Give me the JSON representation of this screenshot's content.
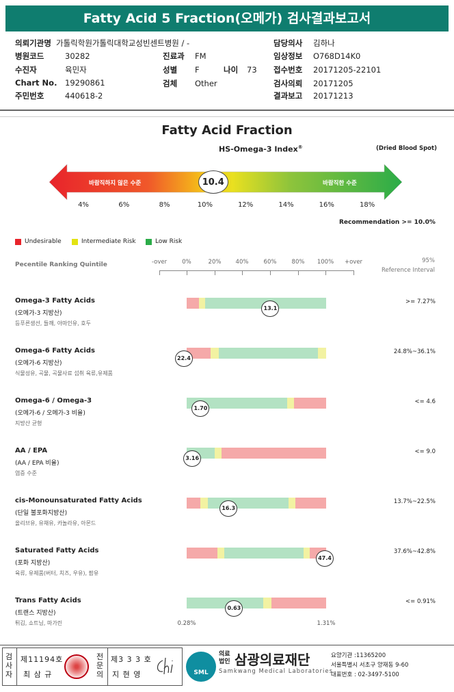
{
  "header": {
    "title": "Fatty Acid 5 Fraction(오메가) 검사결과보고서"
  },
  "info": {
    "institution_label": "의뢰기관명",
    "institution": "가톨릭학원가톨릭대학교성빈센트병원 / -",
    "hospital_code_label": "병원코드",
    "hospital_code": "30282",
    "department_label": "진료과",
    "department": "FM",
    "patient_label": "수진자",
    "patient": "육민자",
    "sex_label": "성별",
    "sex": "F",
    "age_label": "나이",
    "age": "73",
    "chart_label": "Chart No.",
    "chart": "19290861",
    "specimen_label": "검체",
    "specimen": "Other",
    "rrn_label": "주민번호",
    "rrn": "440618-2",
    "doctor_label": "담당의사",
    "doctor": "김하나",
    "clinical_label": "임상정보",
    "clinical": "O768D14K0",
    "receipt_label": "접수번호",
    "receipt": "20171205-22101",
    "request_label": "검사의뢰",
    "request": "20171205",
    "report_label": "결과보고",
    "report": "20171213"
  },
  "fraction": {
    "title": "Fatty Acid Fraction",
    "index_label": "HS-Omega-3 Index",
    "index_sup": "®",
    "specimen_note": "(Dried Blood Spot)",
    "left_text": "바람직하지 않은 수준",
    "right_text": "바람직한 수준",
    "value": "10.4",
    "value_num": 10.4,
    "scale": [
      "4%",
      "6%",
      "8%",
      "10%",
      "12%",
      "14%",
      "16%",
      "18%"
    ],
    "recommendation": "Recommendation  >= 10.0%"
  },
  "legend": [
    {
      "label": "Undesirable",
      "color": "#e8242b"
    },
    {
      "label": "Intermediate Risk",
      "color": "#e3e312"
    },
    {
      "label": "Low Risk",
      "color": "#2bac48"
    }
  ],
  "ranking": {
    "label": "Pecentile Ranking Quintile",
    "axis": [
      "-over",
      "0%",
      "20%",
      "40%",
      "60%",
      "80%",
      "100%",
      "+over"
    ],
    "ref_title_1": "95%",
    "ref_title_2": "Reference Interval",
    "left_end": "0.28%",
    "right_end": "1.31%"
  },
  "rows": [
    {
      "title": "Omega-3 Fatty Acids",
      "sub": "(오메가-3 지방산)",
      "desc": "등푸른생선, 들깨, 아마인유, 호두",
      "ref": ">= 7.27%",
      "value": "13.1",
      "value_pct": 0.6,
      "segs": [
        [
          "#f5a9a9",
          0,
          0.09
        ],
        [
          "#f2f2a2",
          0.09,
          0.13
        ],
        [
          "#b3e2c3",
          0.13,
          1
        ]
      ]
    },
    {
      "title": "Omega-6 Fatty Acids",
      "sub": "(오메가-6 지방산)",
      "desc": "식물성유, 곡물, 곡물사료 섭취 육류,유제품",
      "ref": "24.8%~36.1%",
      "value": "22.4",
      "value_pct": -0.02,
      "segs": [
        [
          "#f5a9a9",
          0,
          0.17
        ],
        [
          "#f2f2a2",
          0.17,
          0.23
        ],
        [
          "#b3e2c3",
          0.23,
          0.94
        ],
        [
          "#f2f2a2",
          0.94,
          1
        ]
      ]
    },
    {
      "title": "Omega-6 / Omega-3",
      "sub": "(오메가-6 / 오메가-3 비율)",
      "desc": "지방산 균형",
      "ref": "<= 4.6",
      "value": "1.70",
      "value_pct": 0.1,
      "segs": [
        [
          "#b3e2c3",
          0,
          0.72
        ],
        [
          "#f2f2a2",
          0.72,
          0.77
        ],
        [
          "#f5a9a9",
          0.77,
          1
        ]
      ]
    },
    {
      "title": "AA / EPA",
      "sub": "(AA / EPA 비율)",
      "desc": "염증 수준",
      "ref": "<= 9.0",
      "value": "3.16",
      "value_pct": 0.04,
      "segs": [
        [
          "#b3e2c3",
          0,
          0.2
        ],
        [
          "#f2f2a2",
          0.2,
          0.25
        ],
        [
          "#f5a9a9",
          0.25,
          1
        ]
      ]
    },
    {
      "title": "cis-Monounsaturated Fatty Acids",
      "sub": "(단일 불포화지방산)",
      "desc": "올리브유, 유채유, 카놀라유, 아몬드",
      "ref": "13.7%~22.5%",
      "value": "16.3",
      "value_pct": 0.3,
      "segs": [
        [
          "#f5a9a9",
          0,
          0.1
        ],
        [
          "#f2f2a2",
          0.1,
          0.15
        ],
        [
          "#b3e2c3",
          0.15,
          0.73
        ],
        [
          "#f2f2a2",
          0.73,
          0.78
        ],
        [
          "#f5a9a9",
          0.78,
          1
        ]
      ]
    },
    {
      "title": "Saturated Fatty Acids",
      "sub": "(포화 지방산)",
      "desc": "육류, 유제품(버터, 치즈, 우유), 팜유",
      "ref": "37.6%~42.8%",
      "value": "47.4",
      "value_pct": 0.99,
      "segs": [
        [
          "#f5a9a9",
          0,
          0.22
        ],
        [
          "#f2f2a2",
          0.22,
          0.27
        ],
        [
          "#b3e2c3",
          0.27,
          0.84
        ],
        [
          "#f2f2a2",
          0.84,
          0.88
        ],
        [
          "#f5a9a9",
          0.88,
          1
        ]
      ]
    },
    {
      "title": "Trans Fatty Acids",
      "sub": "(트랜스 지방산)",
      "desc": "튀김, 쇼트닝, 마가린",
      "ref": "<= 0.91%",
      "value": "0.63",
      "value_pct": 0.34,
      "segs": [
        [
          "#b3e2c3",
          0,
          0.55
        ],
        [
          "#f2f2a2",
          0.55,
          0.61
        ],
        [
          "#f5a9a9",
          0.61,
          1
        ]
      ]
    }
  ],
  "footer": {
    "examiner_label": "검사자",
    "examiner_no": "제11194호",
    "examiner_name": "최 삼 규",
    "specialist_label": "전문의",
    "specialist_no": "제3 3 3 호",
    "specialist_name": "지 현 영",
    "corp_1": "의료",
    "corp_2": "법인",
    "institution": "삼광의료재단",
    "institution_en": "Samkwang Medical Laboratories",
    "logo_text": "SML",
    "code_line": "요양기관 :11365200",
    "address": "서울특별시 서초구 양재동 9-60",
    "phone": "대표번호 : 02-3497-5100"
  }
}
